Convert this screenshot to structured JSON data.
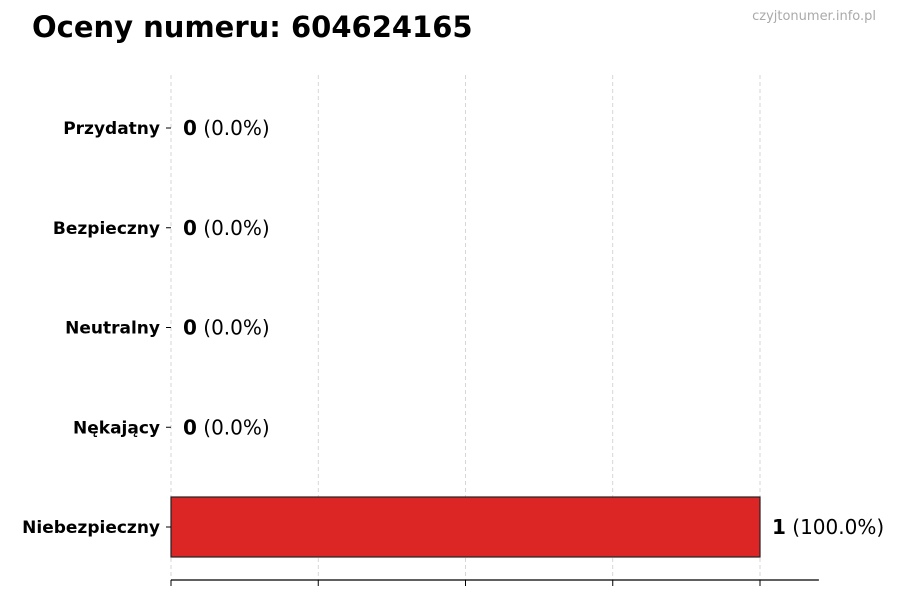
{
  "watermark": "czyjtonumer.info.pl",
  "chart_data": {
    "type": "bar",
    "orientation": "horizontal",
    "title": "Oceny numeru: 604624165",
    "categories": [
      "Przydatny",
      "Bezpieczny",
      "Neutralny",
      "Nękający",
      "Niebezpieczny"
    ],
    "values": [
      0,
      0,
      0,
      0,
      1
    ],
    "labels": [
      "(0.0%)",
      "(0.0%)",
      "(0.0%)",
      "(0.0%)",
      "(100.0%)"
    ],
    "bar_color": "#dc2626",
    "xlim": [
      0,
      1.1
    ],
    "x_gridlines": [
      0,
      0.25,
      0.5,
      0.75,
      1.0
    ],
    "grid": true,
    "xlabel": "",
    "ylabel": ""
  }
}
